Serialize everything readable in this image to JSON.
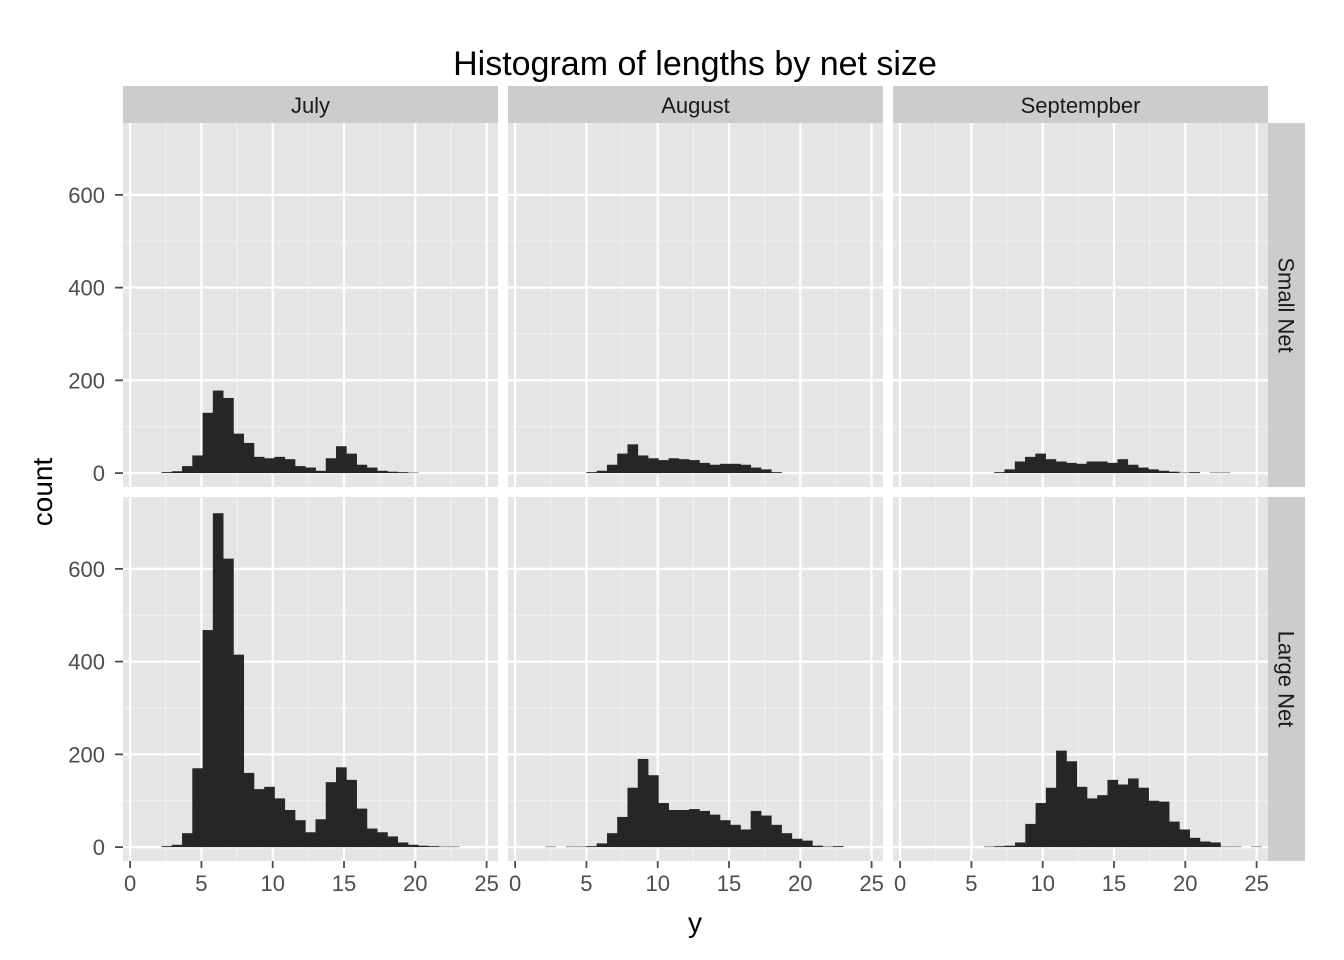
{
  "chart_data": {
    "type": "bar",
    "title": "Histogram of lengths by net size",
    "xlabel": "y",
    "ylabel": "count",
    "xlim": [
      -0.5,
      25.8
    ],
    "ylim": [
      -30,
      755
    ],
    "x_ticks": [
      0,
      5,
      10,
      15,
      20,
      25
    ],
    "y_ticks": [
      0,
      200,
      400,
      600
    ],
    "x_tick_labels": [
      "0",
      "5",
      "10",
      "15",
      "20",
      "25"
    ],
    "y_tick_labels": [
      "0",
      "200",
      "400",
      "600"
    ],
    "grid": true,
    "bin_width": 0.72,
    "columns": [
      "July",
      "August",
      "Septempber"
    ],
    "rows": [
      "Small Net",
      "Large Net"
    ],
    "bar_color": "#262626",
    "panel_background": "#e5e5e5",
    "strip_background": "#cccccc",
    "panels": [
      {
        "column": "July",
        "row": "Small Net",
        "bin_start": 2.2,
        "counts": [
          2,
          4,
          15,
          38,
          130,
          178,
          162,
          85,
          65,
          35,
          32,
          35,
          30,
          15,
          12,
          5,
          32,
          58,
          42,
          18,
          12,
          5,
          3,
          2,
          1
        ]
      },
      {
        "column": "August",
        "row": "Small Net",
        "bin_start": 5.0,
        "counts": [
          2,
          5,
          18,
          42,
          62,
          38,
          32,
          28,
          32,
          30,
          28,
          22,
          18,
          20,
          20,
          18,
          12,
          8,
          2
        ]
      },
      {
        "column": "Septempber",
        "row": "Small Net",
        "bin_start": 6.6,
        "counts": [
          2,
          8,
          25,
          35,
          42,
          30,
          25,
          22,
          20,
          25,
          25,
          22,
          30,
          18,
          12,
          8,
          5,
          3,
          1,
          2,
          0,
          1,
          1
        ]
      },
      {
        "column": "July",
        "row": "Large Net",
        "bin_start": 2.2,
        "counts": [
          2,
          5,
          30,
          170,
          468,
          720,
          622,
          415,
          160,
          125,
          130,
          105,
          80,
          58,
          32,
          60,
          140,
          172,
          145,
          83,
          40,
          32,
          23,
          10,
          5,
          3,
          2,
          1,
          1
        ]
      },
      {
        "column": "August",
        "row": "Large Net",
        "bin_start": 1.4,
        "counts": [
          0,
          1,
          0,
          1,
          1,
          2,
          8,
          30,
          65,
          128,
          190,
          155,
          95,
          80,
          80,
          82,
          78,
          70,
          58,
          48,
          38,
          78,
          68,
          48,
          30,
          18,
          14,
          3,
          1,
          2
        ]
      },
      {
        "column": "Septempber",
        "row": "Large Net",
        "bin_start": 5.9,
        "counts": [
          1,
          2,
          3,
          10,
          50,
          95,
          128,
          208,
          185,
          130,
          105,
          112,
          145,
          135,
          148,
          128,
          100,
          98,
          55,
          38,
          20,
          12,
          10,
          1,
          1,
          0,
          1
        ]
      }
    ]
  }
}
